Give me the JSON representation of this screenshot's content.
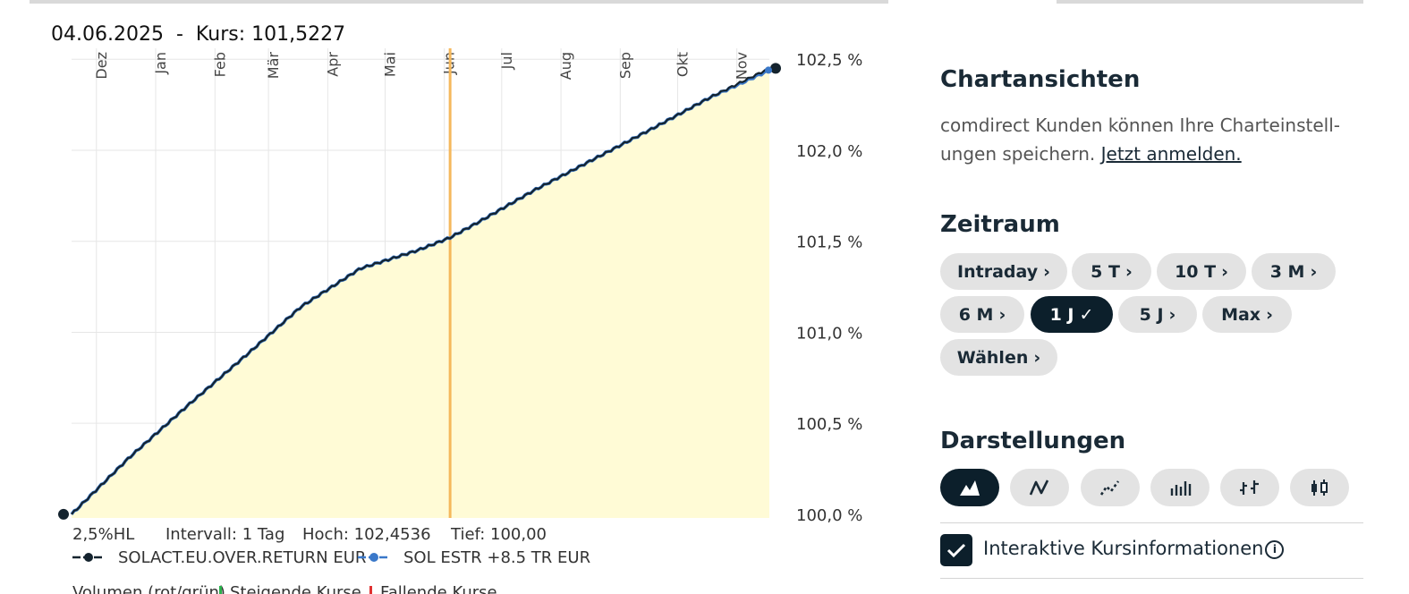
{
  "readout": {
    "date": "04.06.2025",
    "separator": "-",
    "kurs_label": "Kurs:",
    "kurs_value": "101,5227"
  },
  "chart_data": {
    "type": "area",
    "x_months": [
      "Dez",
      "Jan",
      "Feb",
      "Mär",
      "Apr",
      "Mai",
      "Jun",
      "Jul",
      "Aug",
      "Sep",
      "Okt",
      "Nov"
    ],
    "y_ticks": [
      "100,0 %",
      "100,5 %",
      "101,0 %",
      "101,5 %",
      "102,0 %",
      "102,5 %"
    ],
    "y_tick_values": [
      100.0,
      100.5,
      101.0,
      101.5,
      102.0,
      102.5
    ],
    "ylim": [
      99.98,
      102.56
    ],
    "x_range": [
      "2024-11-18",
      "2025-11-18"
    ],
    "series": [
      {
        "name": "SOLACT.EU.OVER.RETURN EUR",
        "color": "#14232e",
        "x": [
          "2024-11-18",
          "2024-12-18",
          "2025-01-18",
          "2025-02-18",
          "2025-03-18",
          "2025-04-18",
          "2025-05-18",
          "2025-06-04",
          "2025-06-18",
          "2025-07-18",
          "2025-08-18",
          "2025-09-18",
          "2025-10-18",
          "2025-11-18"
        ],
        "y": [
          100.0,
          100.31,
          100.6,
          100.88,
          101.14,
          101.35,
          101.45,
          101.52,
          101.6,
          101.78,
          101.95,
          102.12,
          102.29,
          102.45
        ]
      },
      {
        "name": "SOL ESTR +8.5 TR EUR",
        "color": "#3a78c9",
        "x": [
          "2024-11-18",
          "2024-12-18",
          "2025-01-18",
          "2025-02-18",
          "2025-03-18",
          "2025-04-18",
          "2025-05-18",
          "2025-06-04",
          "2025-06-18",
          "2025-07-18",
          "2025-08-18",
          "2025-09-18",
          "2025-10-18",
          "2025-11-18"
        ],
        "y": [
          100.0,
          100.31,
          100.6,
          100.88,
          101.14,
          101.35,
          101.45,
          101.52,
          101.6,
          101.78,
          101.95,
          102.12,
          102.29,
          102.44
        ]
      }
    ],
    "highlight_date": "2025-06-04",
    "highlight_color": "#f5b85c",
    "fill_color": "#fffbd6",
    "grid": true,
    "info_row": [
      {
        "label": "2,5%HL",
        "value": ""
      },
      {
        "label": "Intervall:",
        "value": "1 Tag"
      },
      {
        "label": "Hoch:",
        "value": "102,4536"
      },
      {
        "label": "Tief:",
        "value": "100,00"
      }
    ],
    "legend_labels": [
      "SOLACT.EU.OVER.RETURN EUR",
      "SOL ESTR +8.5 TR EUR"
    ],
    "volume_legend": {
      "label": "Volumen (rot/grün)",
      "rising": "Steigende Kurse",
      "falling": "Fallende Kurse"
    }
  },
  "colors": {
    "dark": "#0c1f2b",
    "pill_bg": "#e3e3e3",
    "muted_text": "#555555"
  },
  "panel": {
    "chartansichten": {
      "title": "Chartansichten",
      "description": "comdirect Kunden können Ihre Charteinstell-ungen speichern.",
      "login_link": "Jetzt anmelden."
    },
    "zeitraum": {
      "title": "Zeitraum",
      "buttons": [
        {
          "label": "Intraday",
          "active": false
        },
        {
          "label": "5 T",
          "active": false
        },
        {
          "label": "10 T",
          "active": false
        },
        {
          "label": "3 M",
          "active": false
        },
        {
          "label": "6 M",
          "active": false
        },
        {
          "label": "1 J",
          "active": true
        },
        {
          "label": "5 J",
          "active": false
        },
        {
          "label": "Max",
          "active": false
        },
        {
          "label": "Wählen",
          "active": false
        }
      ]
    },
    "darstellungen": {
      "title": "Darstellungen",
      "icons": [
        "mountain-chart-icon",
        "line-chart-icon",
        "dotted-line-chart-icon",
        "bar-chart-icon",
        "ohlc-chart-icon",
        "candlestick-chart-icon"
      ],
      "active_index": 0
    },
    "interactive": {
      "label": "Interaktive Kursinformationen",
      "checked": true
    }
  }
}
